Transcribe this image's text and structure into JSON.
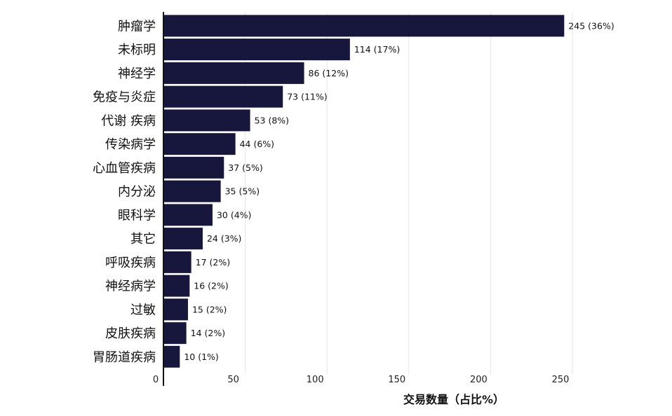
{
  "chart_data": {
    "type": "bar",
    "orientation": "horizontal",
    "categories": [
      "肿瘤学",
      "未标明",
      "神经学",
      "免疫与炎症",
      "代谢 疾病",
      "传染病学",
      "心血管疾病",
      "内分泌",
      "眼科学",
      "其它",
      "呼吸疾病",
      "神经病学",
      "过敏",
      "皮肤疾病",
      "胃肠道疾病"
    ],
    "values": [
      245,
      114,
      86,
      73,
      53,
      44,
      37,
      35,
      30,
      24,
      17,
      16,
      15,
      14,
      10
    ],
    "value_labels": [
      "245 (36%)",
      "114 (17%)",
      "86 (12%)",
      "73 (11%)",
      "53 (8%)",
      "44 (6%)",
      "37 (5%)",
      "35 (5%)",
      "30 (4%)",
      "24 (3%)",
      "17 (2%)",
      "16 (2%)",
      "15 (2%)",
      "14 (2%)",
      "10 (1%)"
    ],
    "xticks": [
      0,
      50,
      100,
      150,
      200,
      250
    ],
    "xlim": [
      0,
      265
    ],
    "xlabel": "交易数量（占比%）",
    "ylabel": "",
    "title": "",
    "grid": "vertical",
    "bar_color": "#17163c"
  }
}
